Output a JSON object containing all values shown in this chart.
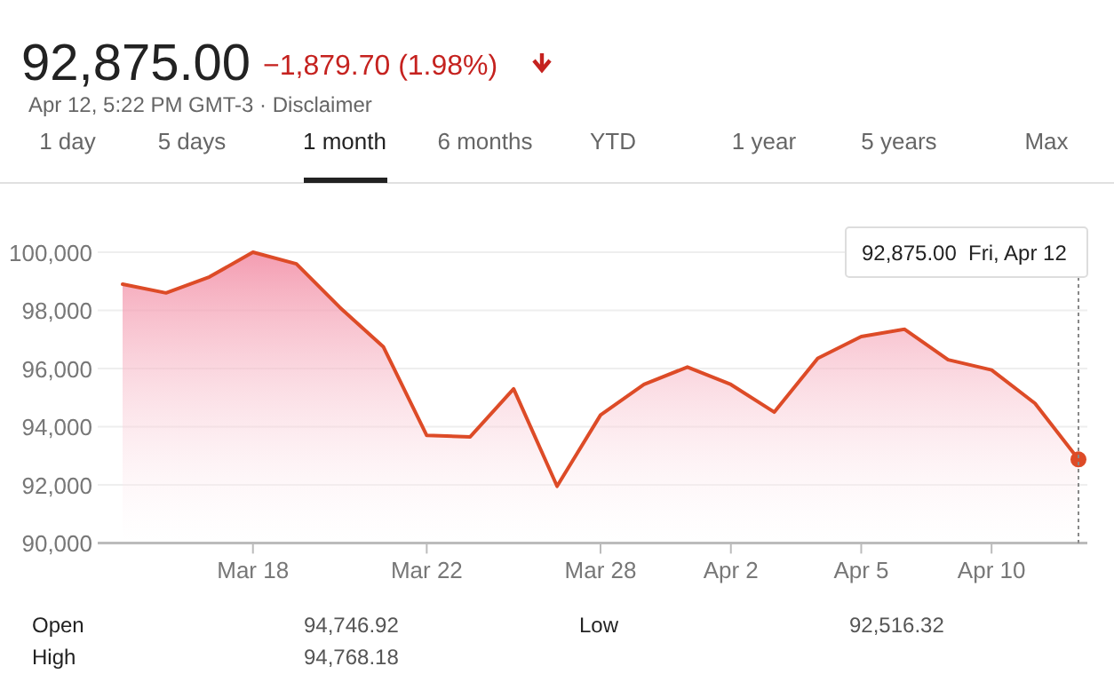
{
  "chart_data": {
    "type": "area",
    "title": "92,875.00",
    "subtitle": "−1,879.70 (1.98%)",
    "annotations": [
      "Apr 12, 5:22 PM GMT-3 · Disclaimer",
      "1 day",
      "5 days",
      "1 month",
      "6 months",
      "YTD",
      "1 year",
      "5 years",
      "Max",
      "92,875.00  Fri, Apr 12",
      "Open",
      "94,746.92",
      "Low",
      "92,516.32",
      "High",
      "94,768.18"
    ],
    "categories": [
      null,
      null,
      null,
      "Mar 18",
      null,
      null,
      null,
      "Mar 22",
      null,
      null,
      null,
      "Mar 28",
      null,
      null,
      "Apr 2",
      null,
      null,
      "Apr 5",
      null,
      null,
      "Apr 10",
      null,
      null
    ],
    "series": [
      {
        "color": "#dd4b27",
        "values": [
          98900,
          98600,
          99150,
          100000,
          99600,
          98100,
          96750,
          93700,
          93650,
          95300,
          91950,
          94400,
          95450,
          96050,
          95450,
          94500,
          96350,
          97100,
          97350,
          96300,
          95950,
          94800,
          92875
        ]
      }
    ],
    "ylim": [
      90000,
      100000
    ],
    "yticks": [
      {
        "value": 90000,
        "label": "90,000"
      },
      {
        "value": 92000,
        "label": "92,000"
      },
      {
        "value": 94000,
        "label": "94,000"
      },
      {
        "value": 96000,
        "label": "96,000"
      },
      {
        "value": 98000,
        "label": "98,000"
      },
      {
        "value": 100000,
        "label": "100,000"
      }
    ],
    "grid": "y"
  }
}
